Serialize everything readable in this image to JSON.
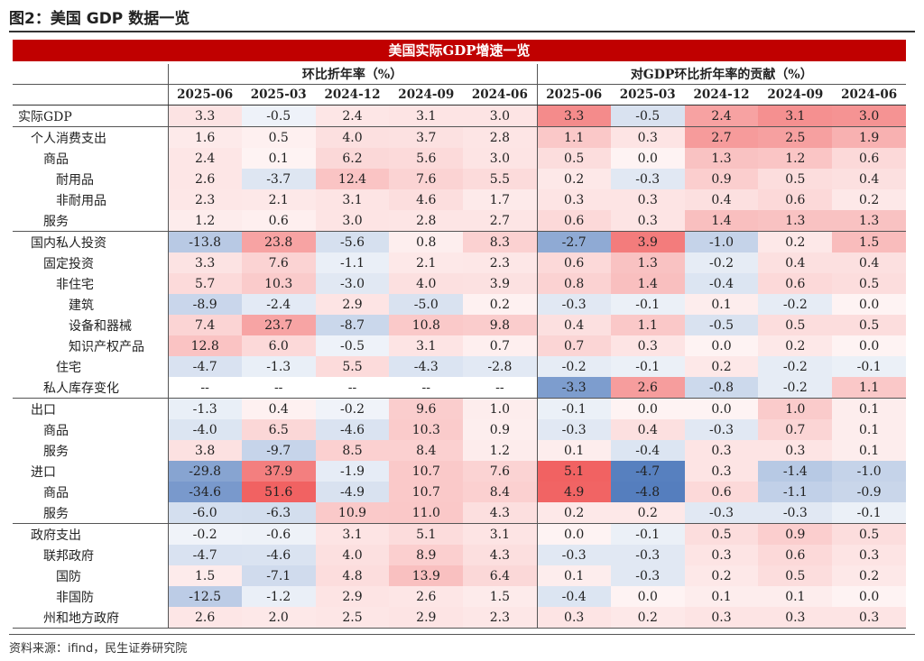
{
  "figure_title": "图2：美国 GDP 数据一览",
  "banner": "美国实际GDP增速一览",
  "group1_header": "环比折年率（%）",
  "group2_header": "对GDP环比折年率的贡献（%）",
  "columns": [
    "2025-06",
    "2025-03",
    "2024-12",
    "2024-09",
    "2024-06"
  ],
  "rows": [
    {
      "label": "实际GDP",
      "indent": 0,
      "group": true,
      "a": [
        "3.3",
        "-0.5",
        "2.4",
        "3.1",
        "3.0"
      ],
      "b": [
        "3.3",
        "-0.5",
        "2.4",
        "3.1",
        "3.0"
      ]
    },
    {
      "label": "个人消费支出",
      "indent": 1,
      "group": true,
      "a": [
        "1.6",
        "0.5",
        "4.0",
        "3.7",
        "2.8"
      ],
      "b": [
        "1.1",
        "0.3",
        "2.7",
        "2.5",
        "1.9"
      ]
    },
    {
      "label": "商品",
      "indent": 2,
      "a": [
        "2.4",
        "0.1",
        "6.2",
        "5.6",
        "3.0"
      ],
      "b": [
        "0.5",
        "0.0",
        "1.3",
        "1.2",
        "0.6"
      ]
    },
    {
      "label": "耐用品",
      "indent": 3,
      "a": [
        "2.6",
        "-3.7",
        "12.4",
        "7.6",
        "5.5"
      ],
      "b": [
        "0.2",
        "-0.3",
        "0.9",
        "0.5",
        "0.4"
      ]
    },
    {
      "label": "非耐用品",
      "indent": 3,
      "a": [
        "2.3",
        "2.1",
        "3.1",
        "4.6",
        "1.7"
      ],
      "b": [
        "0.3",
        "0.3",
        "0.4",
        "0.6",
        "0.2"
      ]
    },
    {
      "label": "服务",
      "indent": 2,
      "a": [
        "1.2",
        "0.6",
        "3.0",
        "2.8",
        "2.7"
      ],
      "b": [
        "0.6",
        "0.3",
        "1.4",
        "1.3",
        "1.3"
      ]
    },
    {
      "label": "国内私人投资",
      "indent": 1,
      "group": true,
      "a": [
        "-13.8",
        "23.8",
        "-5.6",
        "0.8",
        "8.3"
      ],
      "b": [
        "-2.7",
        "3.9",
        "-1.0",
        "0.2",
        "1.5"
      ]
    },
    {
      "label": "固定投资",
      "indent": 2,
      "a": [
        "3.3",
        "7.6",
        "-1.1",
        "2.1",
        "2.3"
      ],
      "b": [
        "0.6",
        "1.3",
        "-0.2",
        "0.4",
        "0.4"
      ]
    },
    {
      "label": "非住宅",
      "indent": 3,
      "a": [
        "5.7",
        "10.3",
        "-3.0",
        "4.0",
        "3.9"
      ],
      "b": [
        "0.8",
        "1.4",
        "-0.4",
        "0.6",
        "0.5"
      ]
    },
    {
      "label": "建筑",
      "indent": 4,
      "a": [
        "-8.9",
        "-2.4",
        "2.9",
        "-5.0",
        "0.2"
      ],
      "b": [
        "-0.3",
        "-0.1",
        "0.1",
        "-0.2",
        "0.0"
      ]
    },
    {
      "label": "设备和器械",
      "indent": 4,
      "a": [
        "7.4",
        "23.7",
        "-8.7",
        "10.8",
        "9.8"
      ],
      "b": [
        "0.4",
        "1.1",
        "-0.5",
        "0.5",
        "0.5"
      ]
    },
    {
      "label": "知识产权产品",
      "indent": 4,
      "a": [
        "12.8",
        "6.0",
        "-0.5",
        "3.1",
        "0.7"
      ],
      "b": [
        "0.7",
        "0.3",
        "0.0",
        "0.2",
        "0.0"
      ]
    },
    {
      "label": "住宅",
      "indent": 3,
      "a": [
        "-4.7",
        "-1.3",
        "5.5",
        "-4.3",
        "-2.8"
      ],
      "b": [
        "-0.2",
        "-0.1",
        "0.2",
        "-0.2",
        "-0.1"
      ]
    },
    {
      "label": "私人库存变化",
      "indent": 2,
      "a": [
        "--",
        "--",
        "--",
        "--",
        "--"
      ],
      "b": [
        "-3.3",
        "2.6",
        "-0.8",
        "-0.2",
        "1.1"
      ]
    },
    {
      "label": "出口",
      "indent": 1,
      "group": true,
      "a": [
        "-1.3",
        "0.4",
        "-0.2",
        "9.6",
        "1.0"
      ],
      "b": [
        "-0.1",
        "0.0",
        "0.0",
        "1.0",
        "0.1"
      ]
    },
    {
      "label": "商品",
      "indent": 2,
      "a": [
        "-4.0",
        "6.5",
        "-4.6",
        "10.3",
        "0.9"
      ],
      "b": [
        "-0.3",
        "0.4",
        "-0.3",
        "0.7",
        "0.1"
      ]
    },
    {
      "label": "服务",
      "indent": 2,
      "a": [
        "3.8",
        "-9.7",
        "8.5",
        "8.4",
        "1.2"
      ],
      "b": [
        "0.1",
        "-0.4",
        "0.3",
        "0.3",
        "0.1"
      ]
    },
    {
      "label": "进口",
      "indent": 1,
      "a": [
        "-29.8",
        "37.9",
        "-1.9",
        "10.7",
        "7.6"
      ],
      "b": [
        "5.1",
        "-4.7",
        "0.3",
        "-1.4",
        "-1.0"
      ]
    },
    {
      "label": "商品",
      "indent": 2,
      "a": [
        "-34.6",
        "51.6",
        "-4.9",
        "10.7",
        "8.4"
      ],
      "b": [
        "4.9",
        "-4.8",
        "0.6",
        "-1.1",
        "-0.9"
      ]
    },
    {
      "label": "服务",
      "indent": 2,
      "a": [
        "-6.0",
        "-6.3",
        "10.9",
        "11.0",
        "4.3"
      ],
      "b": [
        "0.2",
        "0.2",
        "-0.3",
        "-0.3",
        "-0.1"
      ]
    },
    {
      "label": "政府支出",
      "indent": 1,
      "group": true,
      "a": [
        "-0.2",
        "-0.6",
        "3.1",
        "5.1",
        "3.1"
      ],
      "b": [
        "0.0",
        "-0.1",
        "0.5",
        "0.9",
        "0.5"
      ]
    },
    {
      "label": "联邦政府",
      "indent": 2,
      "a": [
        "-4.7",
        "-4.6",
        "4.0",
        "8.9",
        "4.3"
      ],
      "b": [
        "-0.3",
        "-0.3",
        "0.3",
        "0.6",
        "0.3"
      ]
    },
    {
      "label": "国防",
      "indent": 3,
      "a": [
        "1.5",
        "-7.1",
        "4.8",
        "13.9",
        "6.4"
      ],
      "b": [
        "0.1",
        "-0.3",
        "0.2",
        "0.5",
        "0.2"
      ]
    },
    {
      "label": "非国防",
      "indent": 3,
      "a": [
        "-12.5",
        "-1.2",
        "2.9",
        "2.6",
        "1.5"
      ],
      "b": [
        "-0.4",
        "0.0",
        "0.1",
        "0.1",
        "0.0"
      ]
    },
    {
      "label": "州和地方政府",
      "indent": 2,
      "a": [
        "2.6",
        "2.0",
        "2.5",
        "2.9",
        "2.3"
      ],
      "b": [
        "0.3",
        "0.2",
        "0.3",
        "0.3",
        "0.3"
      ]
    }
  ],
  "source": "资料来源：ifind，民生证券研究院",
  "colors": {
    "banner": "#c00000",
    "positive_max": "#f06a6a",
    "negative_max": "#4a76b8"
  },
  "color_scale": {
    "a_max": 50,
    "b_max": 5
  }
}
